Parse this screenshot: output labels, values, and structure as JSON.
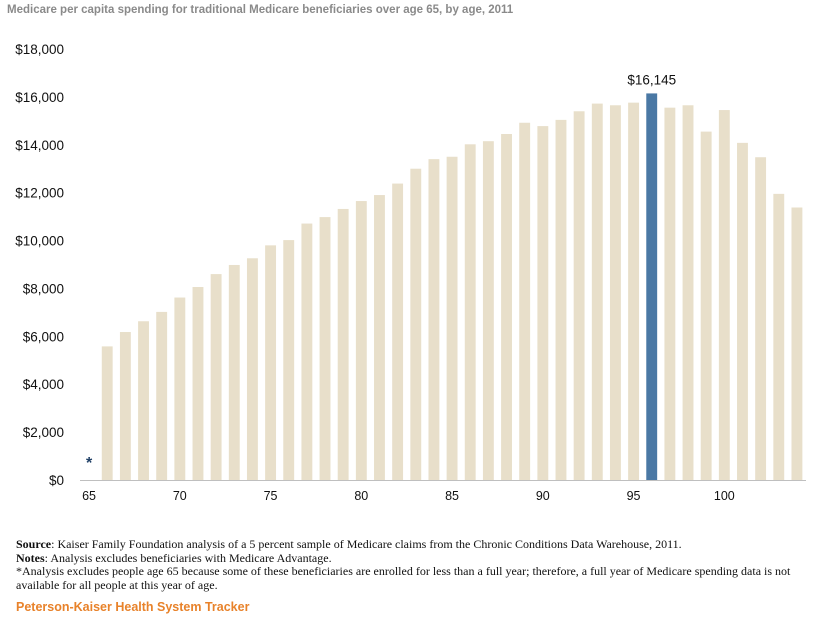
{
  "chart_data": {
    "type": "bar",
    "title": "Medicare per capita spending for traditional Medicare beneficiaries over age 65, by age, 2011",
    "xlabel": "",
    "ylabel": "",
    "categories": [
      65,
      66,
      67,
      68,
      69,
      70,
      71,
      72,
      73,
      74,
      75,
      76,
      77,
      78,
      79,
      80,
      81,
      82,
      83,
      84,
      85,
      86,
      87,
      88,
      89,
      90,
      91,
      92,
      93,
      94,
      95,
      96,
      97,
      98,
      99,
      100,
      101,
      102,
      103,
      104
    ],
    "values": [
      null,
      5580,
      6180,
      6630,
      7020,
      7620,
      8060,
      8600,
      8980,
      9260,
      9800,
      10020,
      10710,
      10980,
      11320,
      11650,
      11900,
      12380,
      13000,
      13400,
      13500,
      14020,
      14150,
      14450,
      14920,
      14780,
      15040,
      15400,
      15720,
      15650,
      15760,
      16145,
      15550,
      15650,
      14550,
      15450,
      14080,
      13480,
      11950,
      11380
    ],
    "highlight": {
      "category": 96,
      "value": 16145,
      "label": "$16,145"
    },
    "y_ticks": [
      "$0",
      "$2,000",
      "$4,000",
      "$6,000",
      "$8,000",
      "$10,000",
      "$12,000",
      "$14,000",
      "$16,000",
      "$18,000"
    ],
    "x_ticks": [
      "65",
      "70",
      "75",
      "80",
      "85",
      "90",
      "95",
      "100"
    ],
    "ylim": [
      0,
      18000
    ],
    "asterisk": {
      "category": 65,
      "text": "*"
    },
    "colors": {
      "bar": "#e8dfca",
      "highlight": "#4a78a4",
      "axis": "#bfbfbf",
      "asterisk": "#1f3f66"
    }
  },
  "notes": {
    "source_label": "Source",
    "source_text": ": Kaiser Family Foundation analysis of a 5 percent sample of Medicare claims from the Chronic Conditions Data Warehouse, 2011.",
    "notes_label": "Notes",
    "notes_text": ": Analysis excludes beneficiaries with Medicare Advantage.",
    "footnote": "*Analysis excludes people age 65 because some of these beneficiaries are enrolled for less than a full year; therefore, a full year of Medicare spending data is not available for all people at this year of age."
  },
  "branding": {
    "tracker": "Peterson-Kaiser Health System Tracker"
  }
}
